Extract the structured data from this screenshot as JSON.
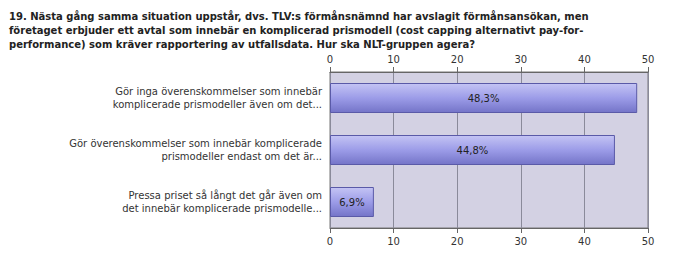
{
  "chart_data": {
    "type": "bar",
    "orientation": "horizontal",
    "title": "19. Nästa gång samma situation uppstår, dvs. TLV:s förmånsnämnd har avslagit förmånsansökan, men\nföretaget erbjuder ett avtal som innebär en komplicerad prismodell (cost capping alternativt pay-for-\nperformance) som kräver rapportering av utfallsdata. Hur ska NLT-gruppen agera?",
    "categories": [
      "Gör inga överenskommelser som innebär\nkomplicerade prismodeller även om det...",
      "Gör överenskommelser som innebär komplicerade\nprismodeller endast om det är...",
      "Pressa priset så långt det går även om\ndet innebär komplicerade prismodelle..."
    ],
    "values": [
      48.3,
      44.8,
      6.9
    ],
    "value_labels": [
      "48,3%",
      "44,8%",
      "6,9%"
    ],
    "data_labels": true,
    "color": "#9c9ce8",
    "xlim": [
      0,
      50
    ],
    "xticks": [
      0,
      10,
      20,
      30,
      40,
      50
    ],
    "grid": true
  }
}
